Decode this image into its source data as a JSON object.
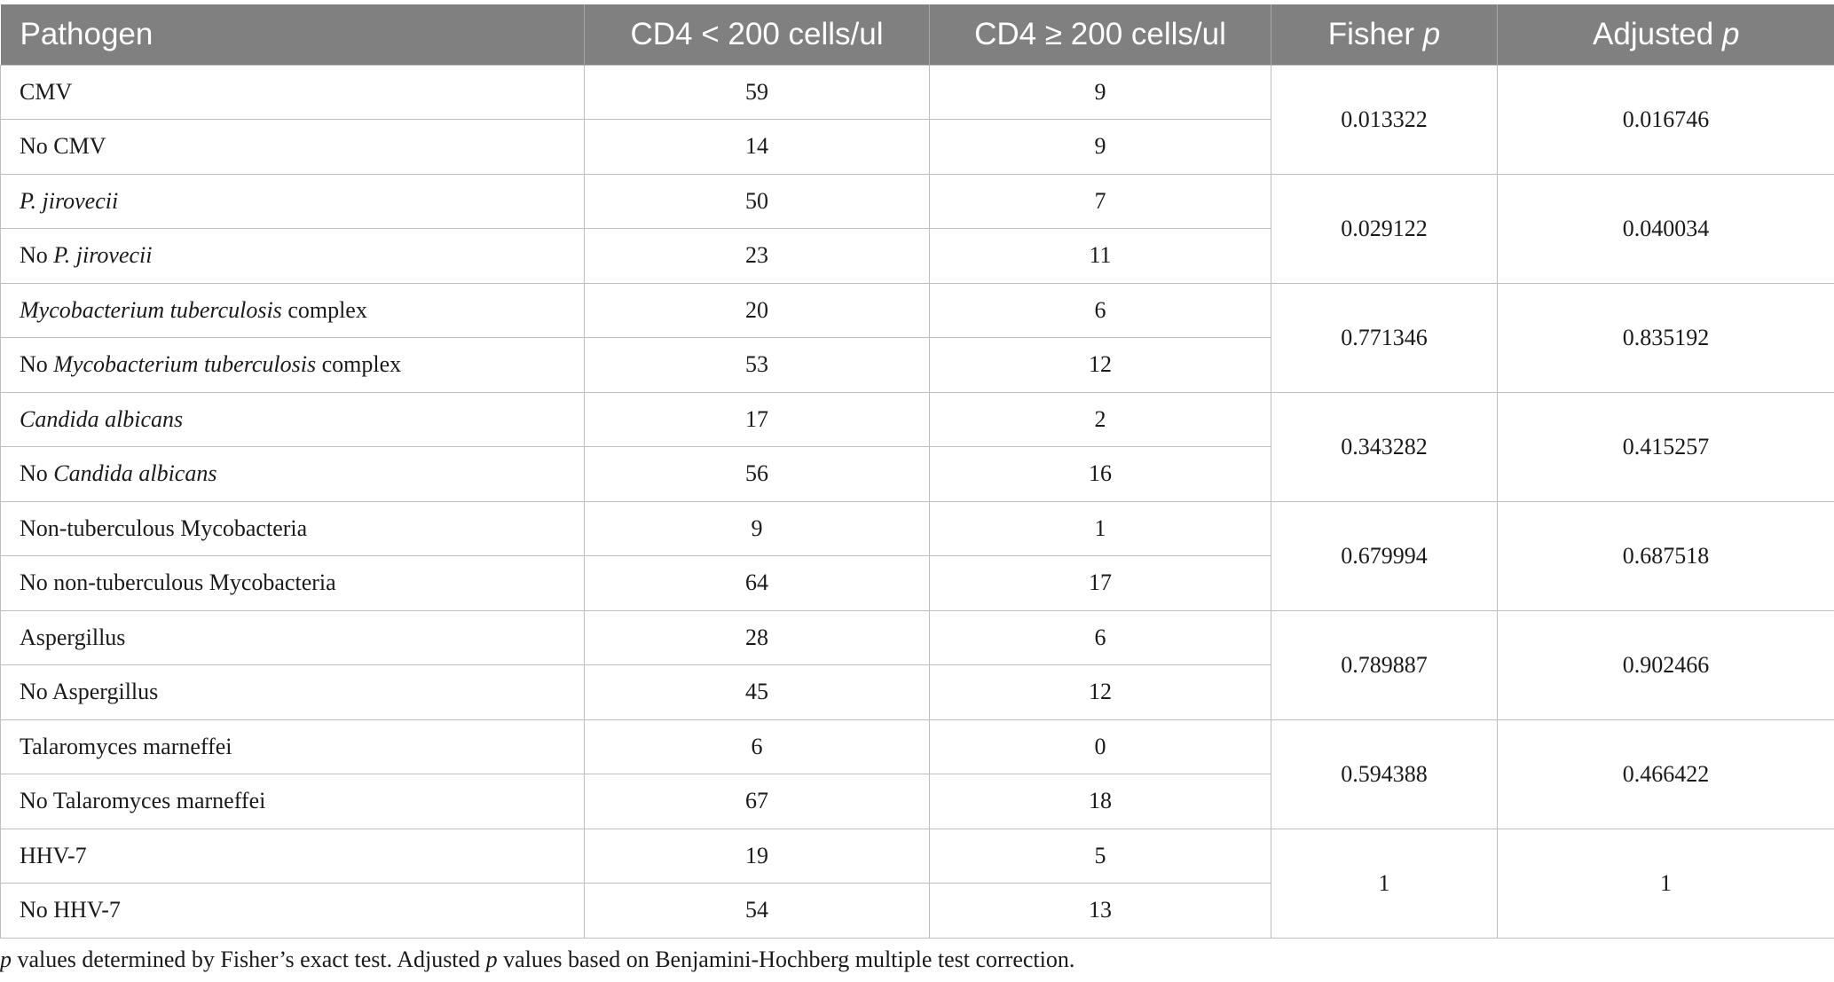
{
  "table": {
    "headers": {
      "pathogen": "Pathogen",
      "cd4_low": "CD4 < 200 cells/ul",
      "cd4_high": "CD4 ≥ 200 cells/ul",
      "fisher_word": "Fisher",
      "adjusted_word": "Adjusted",
      "p_symbol": "p"
    },
    "groups": [
      {
        "fisher_p": "0.013322",
        "adjusted_p": "0.016746",
        "rows": [
          {
            "pre": "",
            "it": "",
            "post": "CMV",
            "cd4_low": "59",
            "cd4_high": "9"
          },
          {
            "pre": "",
            "it": "",
            "post": "No CMV",
            "cd4_low": "14",
            "cd4_high": "9"
          }
        ]
      },
      {
        "fisher_p": "0.029122",
        "adjusted_p": "0.040034",
        "rows": [
          {
            "pre": "",
            "it": "P. jirovecii",
            "post": "",
            "cd4_low": "50",
            "cd4_high": "7"
          },
          {
            "pre": "No ",
            "it": "P. jirovecii",
            "post": "",
            "cd4_low": "23",
            "cd4_high": "11"
          }
        ]
      },
      {
        "fisher_p": "0.771346",
        "adjusted_p": "0.835192",
        "rows": [
          {
            "pre": "",
            "it": "Mycobacterium tuberculosis",
            "post": " complex",
            "cd4_low": "20",
            "cd4_high": "6"
          },
          {
            "pre": "No ",
            "it": "Mycobacterium tuberculosis",
            "post": " complex",
            "cd4_low": "53",
            "cd4_high": "12"
          }
        ]
      },
      {
        "fisher_p": "0.343282",
        "adjusted_p": "0.415257",
        "rows": [
          {
            "pre": "",
            "it": "Candida albicans",
            "post": "",
            "cd4_low": "17",
            "cd4_high": "2"
          },
          {
            "pre": "No ",
            "it": "Candida albicans",
            "post": "",
            "cd4_low": "56",
            "cd4_high": "16"
          }
        ]
      },
      {
        "fisher_p": "0.679994",
        "adjusted_p": "0.687518",
        "rows": [
          {
            "pre": "",
            "it": "",
            "post": "Non-tuberculous Mycobacteria",
            "cd4_low": "9",
            "cd4_high": "1"
          },
          {
            "pre": "",
            "it": "",
            "post": "No non-tuberculous Mycobacteria",
            "cd4_low": "64",
            "cd4_high": "17"
          }
        ]
      },
      {
        "fisher_p": "0.789887",
        "adjusted_p": "0.902466",
        "rows": [
          {
            "pre": "",
            "it": "",
            "post": "Aspergillus",
            "cd4_low": "28",
            "cd4_high": "6"
          },
          {
            "pre": "",
            "it": "",
            "post": "No Aspergillus",
            "cd4_low": "45",
            "cd4_high": "12"
          }
        ]
      },
      {
        "fisher_p": "0.594388",
        "adjusted_p": "0.466422",
        "rows": [
          {
            "pre": "",
            "it": "",
            "post": "Talaromyces marneffei",
            "cd4_low": "6",
            "cd4_high": "0"
          },
          {
            "pre": "",
            "it": "",
            "post": "No Talaromyces marneffei",
            "cd4_low": "67",
            "cd4_high": "18"
          }
        ]
      },
      {
        "fisher_p": "1",
        "adjusted_p": "1",
        "rows": [
          {
            "pre": "",
            "it": "",
            "post": "HHV-7",
            "cd4_low": "19",
            "cd4_high": "5"
          },
          {
            "pre": "",
            "it": "",
            "post": "No HHV-7",
            "cd4_low": "54",
            "cd4_high": "13"
          }
        ]
      }
    ]
  },
  "footnote": {
    "p1": "p",
    "text1": " values determined by Fisher’s exact test. Adjusted ",
    "p2": "p",
    "text2": " values based on Benjamini-Hochberg multiple test correction."
  }
}
